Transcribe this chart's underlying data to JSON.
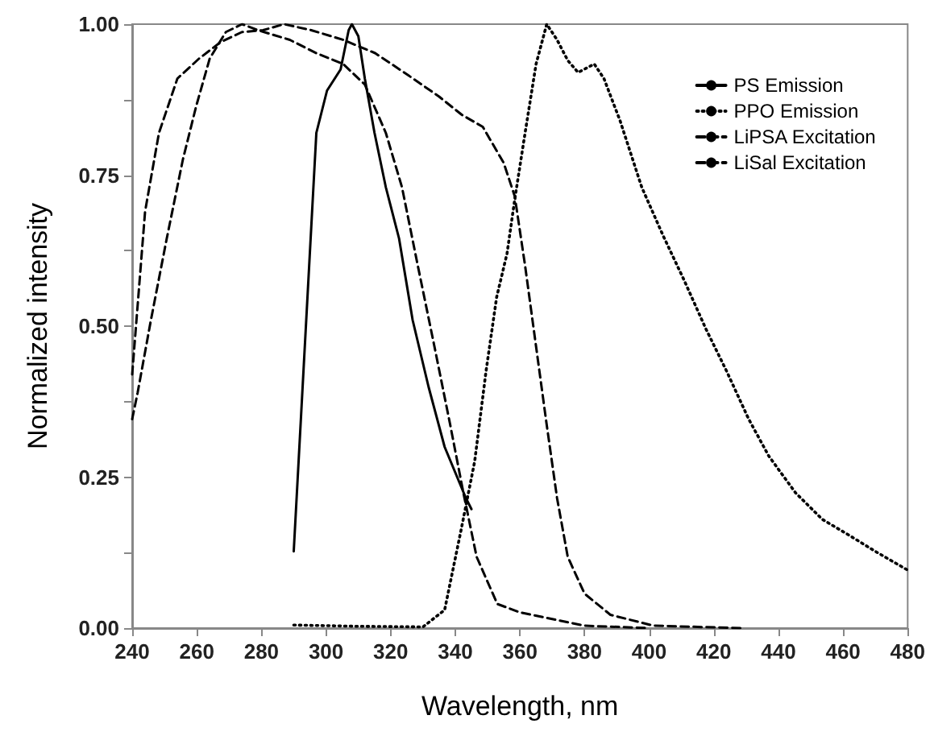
{
  "chart_data": {
    "type": "line",
    "xlabel": "Wavelength, nm",
    "ylabel": "Normalized intensity",
    "xlim": [
      240,
      480
    ],
    "xticks": [
      240,
      260,
      280,
      300,
      320,
      340,
      360,
      380,
      400,
      420,
      440,
      460,
      480
    ],
    "ylim": [
      0,
      1
    ],
    "yticks": [
      {
        "value": 0,
        "label": "0.00"
      },
      {
        "value": 0.125,
        "label": null
      },
      {
        "value": 0.25,
        "label": "0.25"
      },
      {
        "value": 0.375,
        "label": null
      },
      {
        "value": 0.5,
        "label": "0.50"
      },
      {
        "value": 0.625,
        "label": null
      },
      {
        "value": 0.75,
        "label": "0.75"
      },
      {
        "value": 0.875,
        "label": null
      },
      {
        "value": 1,
        "label": "1.00"
      }
    ],
    "grid": false,
    "legend": "top right",
    "marker": "none",
    "series": [
      {
        "name": "PS Emission",
        "color": "#000000",
        "line_style": "solid",
        "x": [
          290,
          297,
          300.3,
          304.5,
          307,
          308,
          310,
          312,
          315,
          318.5,
          322.6,
          326.8,
          331.7,
          336.7,
          343.3,
          345
        ],
        "values": [
          0.127,
          0.82,
          0.89,
          0.925,
          0.99,
          1.0,
          0.98,
          0.91,
          0.82,
          0.73,
          0.645,
          0.51,
          0.4,
          0.3,
          0.215,
          0.197
        ]
      },
      {
        "name": "PPO Emission",
        "color": "#000000",
        "line_style": "dotted",
        "x": [
          290,
          310,
          330,
          336.7,
          341.7,
          346,
          349.5,
          352.8,
          356,
          358.4,
          361.6,
          365,
          368.3,
          371.5,
          374.8,
          378,
          383,
          386,
          391,
          397.7,
          404.3,
          410.9,
          417.5,
          424,
          430.8,
          437,
          445.3,
          453.6,
          461.8,
          470,
          480
        ],
        "values": [
          0.005,
          0.003,
          0.002,
          0.03,
          0.16,
          0.276,
          0.425,
          0.548,
          0.62,
          0.71,
          0.82,
          0.934,
          1.0,
          0.974,
          0.94,
          0.92,
          0.934,
          0.91,
          0.84,
          0.73,
          0.65,
          0.575,
          0.496,
          0.425,
          0.346,
          0.285,
          0.224,
          0.18,
          0.154,
          0.127,
          0.096
        ]
      },
      {
        "name": "LiPSA Excitation",
        "color": "#000000",
        "line_style": "dashed",
        "x": [
          240,
          244,
          248.3,
          254,
          260.7,
          267.3,
          274,
          280.5,
          287,
          295.4,
          305.3,
          315.2,
          325,
          335,
          342,
          348.5,
          355,
          358.4,
          361.6,
          364.9,
          368.2,
          371.5,
          374.8,
          380,
          388,
          401.3,
          428.5
        ],
        "values": [
          0.42,
          0.69,
          0.82,
          0.91,
          0.943,
          0.97,
          0.987,
          0.99,
          1.0,
          0.99,
          0.974,
          0.952,
          0.917,
          0.88,
          0.85,
          0.83,
          0.77,
          0.715,
          0.6,
          0.47,
          0.34,
          0.215,
          0.118,
          0.057,
          0.022,
          0.004,
          0
        ]
      },
      {
        "name": "LiSal Excitation",
        "color": "#000000",
        "line_style": "dashed",
        "x": [
          240,
          241.7,
          245.8,
          250.7,
          255.7,
          259.8,
          264,
          269,
          274,
          279,
          282,
          288.8,
          297,
          305.3,
          312,
          318.5,
          323.5,
          328.4,
          333.4,
          338.3,
          342.5,
          346.6,
          353,
          360,
          380,
          400
        ],
        "values": [
          0.346,
          0.39,
          0.51,
          0.645,
          0.776,
          0.864,
          0.943,
          0.987,
          1.0,
          0.99,
          0.985,
          0.974,
          0.952,
          0.934,
          0.9,
          0.82,
          0.73,
          0.6,
          0.47,
          0.34,
          0.224,
          0.118,
          0.04,
          0.026,
          0.004,
          0
        ]
      }
    ]
  }
}
